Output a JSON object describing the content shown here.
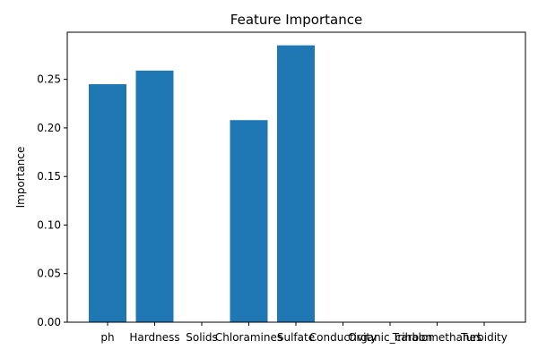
{
  "chart_data": {
    "type": "bar",
    "title": "Feature Importance",
    "xlabel": "",
    "ylabel": "Importance",
    "categories": [
      "ph",
      "Hardness",
      "Solids",
      "Chloramines",
      "Sulfate",
      "Conductivity",
      "Organic_carbon",
      "Trihalomethanes",
      "Turbidity"
    ],
    "values": [
      0.245,
      0.259,
      0.0,
      0.208,
      0.285,
      0.0,
      0.0,
      0.0,
      0.0
    ],
    "ylim": [
      0,
      0.2985
    ],
    "yticks": [
      0.0,
      0.05,
      0.1,
      0.15,
      0.2,
      0.25
    ],
    "ytick_labels": [
      "0.00",
      "0.05",
      "0.10",
      "0.15",
      "0.20",
      "0.25"
    ],
    "bar_color": "#1f77b4",
    "grid": false,
    "legend": "none"
  }
}
